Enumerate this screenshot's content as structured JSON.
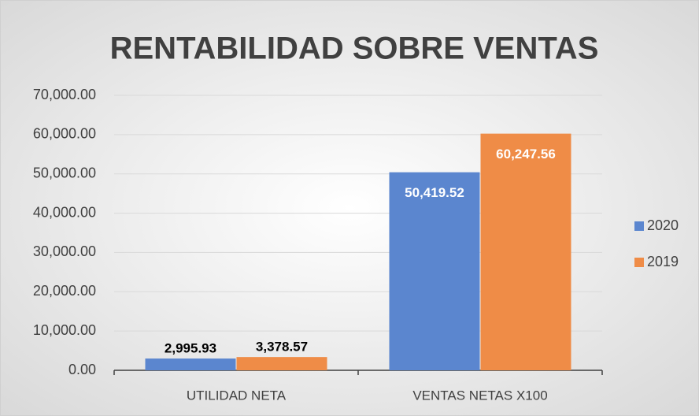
{
  "chart_data": {
    "type": "bar",
    "title": "RENTABILIDAD SOBRE VENTAS",
    "categories": [
      "UTILIDAD NETA",
      "VENTAS NETAS X100"
    ],
    "series": [
      {
        "name": "2020",
        "color": "#5b86cf",
        "values": [
          2995.93,
          50419.52
        ],
        "value_labels": [
          "2,995.93",
          "50,419.52"
        ]
      },
      {
        "name": "2019",
        "color": "#ef8c47",
        "values": [
          3378.57,
          60247.56
        ],
        "value_labels": [
          "3,378.57",
          "60,247.56"
        ]
      }
    ],
    "ylim": [
      0,
      70000
    ],
    "yticks": [
      {
        "value": 0,
        "label": "0.00"
      },
      {
        "value": 10000,
        "label": "10,000.00"
      },
      {
        "value": 20000,
        "label": "20,000.00"
      },
      {
        "value": 30000,
        "label": "30,000.00"
      },
      {
        "value": 40000,
        "label": "40,000.00"
      },
      {
        "value": 50000,
        "label": "50,000.00"
      },
      {
        "value": 60000,
        "label": "60,000.00"
      },
      {
        "value": 70000,
        "label": "70,000.00"
      }
    ],
    "grid": true,
    "legend": "right"
  }
}
